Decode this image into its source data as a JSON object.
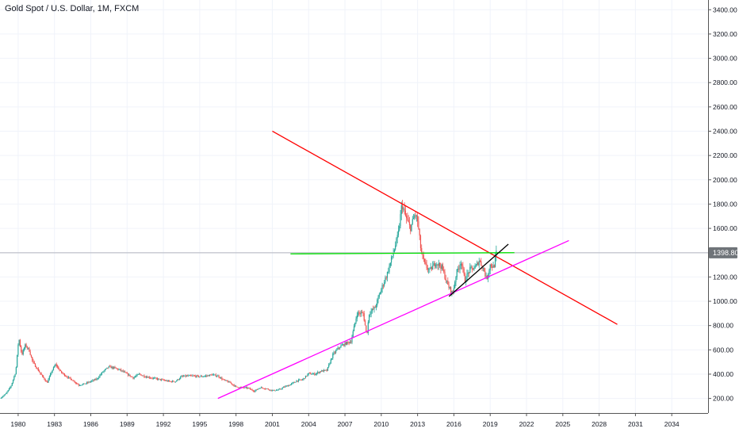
{
  "header": {
    "symbol_title": "Gold Spot / U.S. Dollar, 1M, FXCM"
  },
  "colors": {
    "up_candle": "#26a69a",
    "down_candle": "#ef5350",
    "grid": "#f0f3fa",
    "axis_line": "#555555",
    "price_tag": "#6f7479",
    "price_line": "#b2b5be"
  },
  "chart_data": {
    "type": "candlestick",
    "title": "Gold Spot / U.S. Dollar, 1M, FXCM",
    "xlabel": "",
    "ylabel": "",
    "xlim": [
      1978.5,
      2037.0
    ],
    "ylim": [
      80,
      3480
    ],
    "x_ticks": [
      1980,
      1983,
      1986,
      1989,
      1992,
      1995,
      1998,
      2001,
      2004,
      2007,
      2010,
      2013,
      2016,
      2019,
      2022,
      2025,
      2028,
      2031,
      2034
    ],
    "y_ticks": [
      200,
      400,
      600,
      800,
      1000,
      1200,
      1400,
      1600,
      1800,
      2000,
      2200,
      2400,
      2600,
      2800,
      3000,
      3200,
      3400
    ],
    "y_tick_labels": [
      "200.00",
      "400.00",
      "600.00",
      "800.00",
      "1000.00",
      "1200.00",
      "1400.00",
      "1600.00",
      "1800.00",
      "2000.00",
      "2200.00",
      "2400.00",
      "2600.00",
      "2800.00",
      "3000.00",
      "3200.00",
      "3400.00"
    ],
    "grid": true,
    "last_price": 1398.8,
    "last_price_label": "1398.80",
    "price_path": [
      [
        1978.5,
        200
      ],
      [
        1979.0,
        240
      ],
      [
        1979.4,
        300
      ],
      [
        1979.8,
        420
      ],
      [
        1980.05,
        700
      ],
      [
        1980.3,
        560
      ],
      [
        1980.6,
        640
      ],
      [
        1980.9,
        600
      ],
      [
        1981.2,
        500
      ],
      [
        1981.6,
        440
      ],
      [
        1982.0,
        380
      ],
      [
        1982.4,
        330
      ],
      [
        1982.8,
        430
      ],
      [
        1983.1,
        480
      ],
      [
        1983.5,
        420
      ],
      [
        1984.0,
        380
      ],
      [
        1984.5,
        350
      ],
      [
        1985.0,
        310
      ],
      [
        1985.5,
        320
      ],
      [
        1986.0,
        340
      ],
      [
        1986.5,
        360
      ],
      [
        1987.0,
        420
      ],
      [
        1987.5,
        460
      ],
      [
        1988.0,
        450
      ],
      [
        1988.5,
        430
      ],
      [
        1989.0,
        400
      ],
      [
        1989.5,
        370
      ],
      [
        1990.0,
        400
      ],
      [
        1990.5,
        380
      ],
      [
        1991.0,
        370
      ],
      [
        1991.5,
        360
      ],
      [
        1992.0,
        350
      ],
      [
        1992.5,
        340
      ],
      [
        1993.0,
        340
      ],
      [
        1993.5,
        380
      ],
      [
        1994.0,
        385
      ],
      [
        1994.5,
        385
      ],
      [
        1995.0,
        380
      ],
      [
        1995.5,
        385
      ],
      [
        1996.0,
        395
      ],
      [
        1996.5,
        385
      ],
      [
        1997.0,
        350
      ],
      [
        1997.5,
        330
      ],
      [
        1998.0,
        295
      ],
      [
        1998.5,
        290
      ],
      [
        1999.0,
        285
      ],
      [
        1999.5,
        260
      ],
      [
        2000.0,
        290
      ],
      [
        2000.5,
        280
      ],
      [
        2001.0,
        265
      ],
      [
        2001.5,
        270
      ],
      [
        2002.0,
        295
      ],
      [
        2002.5,
        315
      ],
      [
        2003.0,
        345
      ],
      [
        2003.5,
        355
      ],
      [
        2004.0,
        405
      ],
      [
        2004.5,
        400
      ],
      [
        2005.0,
        425
      ],
      [
        2005.5,
        430
      ],
      [
        2006.0,
        560
      ],
      [
        2006.5,
        620
      ],
      [
        2007.0,
        650
      ],
      [
        2007.5,
        670
      ],
      [
        2008.0,
        900
      ],
      [
        2008.5,
        900
      ],
      [
        2008.8,
        720
      ],
      [
        2009.0,
        900
      ],
      [
        2009.5,
        950
      ],
      [
        2010.0,
        1100
      ],
      [
        2010.5,
        1230
      ],
      [
        2011.0,
        1400
      ],
      [
        2011.4,
        1550
      ],
      [
        2011.7,
        1800
      ],
      [
        2012.0,
        1700
      ],
      [
        2012.4,
        1600
      ],
      [
        2012.8,
        1720
      ],
      [
        2013.0,
        1660
      ],
      [
        2013.3,
        1400
      ],
      [
        2013.6,
        1300
      ],
      [
        2014.0,
        1250
      ],
      [
        2014.5,
        1320
      ],
      [
        2015.0,
        1280
      ],
      [
        2015.5,
        1130
      ],
      [
        2015.9,
        1060
      ],
      [
        2016.2,
        1230
      ],
      [
        2016.6,
        1330
      ],
      [
        2016.9,
        1170
      ],
      [
        2017.3,
        1260
      ],
      [
        2017.8,
        1280
      ],
      [
        2018.1,
        1340
      ],
      [
        2018.5,
        1250
      ],
      [
        2018.7,
        1180
      ],
      [
        2019.0,
        1300
      ],
      [
        2019.3,
        1280
      ],
      [
        2019.5,
        1398.8
      ]
    ],
    "trendlines": [
      {
        "color": "#ff0000",
        "from": [
          2001.0,
          2400
        ],
        "to": [
          2029.5,
          810
        ]
      },
      {
        "color": "#00e000",
        "from": [
          2002.5,
          1390
        ],
        "to": [
          2021.0,
          1400
        ]
      },
      {
        "color": "#ff00ff",
        "from": [
          1996.5,
          200
        ],
        "to": [
          2025.5,
          1500
        ]
      },
      {
        "color": "#000000",
        "from": [
          2015.6,
          1040
        ],
        "to": [
          2020.5,
          1470
        ]
      }
    ]
  }
}
